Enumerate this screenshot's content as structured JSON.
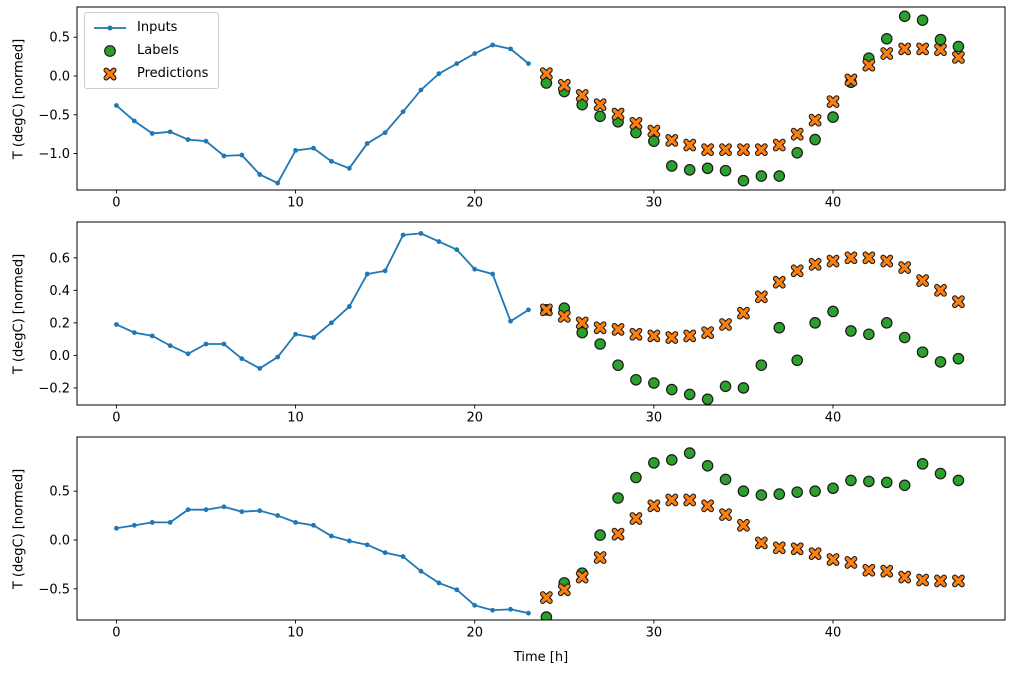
{
  "figure": {
    "type": "matplotlib-figure",
    "background": "#ffffff"
  },
  "legend": {
    "location": "upper-left-of-first-subplot",
    "entries": [
      "Inputs",
      "Labels",
      "Predictions"
    ]
  },
  "colors": {
    "inputs": "#1f77b4",
    "labels": "#2ca02c",
    "predictions": "#ff7f0e",
    "marker_edge": "#1a1a1a",
    "axes": "#000000",
    "legend_border": "#cccccc"
  },
  "chart_data": [
    {
      "type": "line+scatter",
      "title": "",
      "xlabel": "",
      "ylabel": "T (degC) [normed]",
      "xlim": [
        -2.2,
        49.6
      ],
      "ylim": [
        -1.47,
        0.89
      ],
      "x_ticks": [
        0,
        10,
        20,
        30,
        40
      ],
      "x_tick_labels": [
        "0",
        "10",
        "20",
        "30",
        "40"
      ],
      "y_ticks": [
        0.5,
        0.0,
        -0.5,
        -1.0
      ],
      "y_tick_labels": [
        "0.5",
        "0.0",
        "−0.5",
        "−1.0"
      ],
      "grid": false,
      "legend_visible": true,
      "series": [
        {
          "name": "Inputs",
          "type": "line",
          "marker": "dot",
          "color": "#1f77b4",
          "x": [
            0,
            1,
            2,
            3,
            4,
            5,
            6,
            7,
            8,
            9,
            10,
            11,
            12,
            13,
            14,
            15,
            16,
            17,
            18,
            19,
            20,
            21,
            22,
            23
          ],
          "y": [
            -0.38,
            -0.58,
            -0.74,
            -0.72,
            -0.82,
            -0.84,
            -1.03,
            -1.02,
            -1.27,
            -1.38,
            -0.96,
            -0.93,
            -1.1,
            -1.19,
            -0.87,
            -0.73,
            -0.46,
            -0.18,
            0.03,
            0.16,
            0.29,
            0.4,
            0.35,
            0.16
          ]
        },
        {
          "name": "Labels",
          "type": "scatter",
          "marker": "circle",
          "color": "#2ca02c",
          "edge_color": "#1a1a1a",
          "x": [
            24,
            25,
            26,
            27,
            28,
            29,
            30,
            31,
            32,
            33,
            34,
            35,
            36,
            37,
            38,
            39,
            40,
            41,
            42,
            43,
            44,
            45,
            46,
            47
          ],
          "y": [
            -0.09,
            -0.2,
            -0.37,
            -0.52,
            -0.59,
            -0.73,
            -0.84,
            -1.16,
            -1.21,
            -1.19,
            -1.22,
            -1.35,
            -1.29,
            -1.29,
            -0.99,
            -0.82,
            -0.53,
            -0.08,
            0.23,
            0.48,
            0.77,
            0.72,
            0.47,
            0.38
          ]
        },
        {
          "name": "Predictions",
          "type": "scatter",
          "marker": "X",
          "color": "#ff7f0e",
          "edge_color": "#1a1a1a",
          "x": [
            24,
            25,
            26,
            27,
            28,
            29,
            30,
            31,
            32,
            33,
            34,
            35,
            36,
            37,
            38,
            39,
            40,
            41,
            42,
            43,
            44,
            45,
            46,
            47
          ],
          "y": [
            0.03,
            -0.12,
            -0.25,
            -0.37,
            -0.49,
            -0.61,
            -0.71,
            -0.83,
            -0.89,
            -0.95,
            -0.95,
            -0.95,
            -0.95,
            -0.89,
            -0.75,
            -0.57,
            -0.33,
            -0.05,
            0.14,
            0.29,
            0.35,
            0.35,
            0.34,
            0.24
          ]
        }
      ]
    },
    {
      "type": "line+scatter",
      "title": "",
      "xlabel": "",
      "ylabel": "T (degC) [normed]",
      "xlim": [
        -2.2,
        49.6
      ],
      "ylim": [
        -0.305,
        0.82
      ],
      "x_ticks": [
        0,
        10,
        20,
        30,
        40
      ],
      "x_tick_labels": [
        "0",
        "10",
        "20",
        "30",
        "40"
      ],
      "y_ticks": [
        0.6,
        0.4,
        0.2,
        0.0,
        -0.2
      ],
      "y_tick_labels": [
        "0.6",
        "0.4",
        "0.2",
        "0.0",
        "−0.2"
      ],
      "grid": false,
      "legend_visible": false,
      "series": [
        {
          "name": "Inputs",
          "type": "line",
          "marker": "dot",
          "color": "#1f77b4",
          "x": [
            0,
            1,
            2,
            3,
            4,
            5,
            6,
            7,
            8,
            9,
            10,
            11,
            12,
            13,
            14,
            15,
            16,
            17,
            18,
            19,
            20,
            21,
            22,
            23
          ],
          "y": [
            0.19,
            0.14,
            0.12,
            0.06,
            0.01,
            0.07,
            0.07,
            -0.02,
            -0.08,
            -0.01,
            0.13,
            0.11,
            0.2,
            0.3,
            0.5,
            0.52,
            0.74,
            0.75,
            0.7,
            0.65,
            0.53,
            0.5,
            0.21,
            0.28
          ]
        },
        {
          "name": "Labels",
          "type": "scatter",
          "marker": "circle",
          "color": "#2ca02c",
          "edge_color": "#1a1a1a",
          "x": [
            24,
            25,
            26,
            27,
            28,
            29,
            30,
            31,
            32,
            33,
            34,
            35,
            36,
            37,
            38,
            39,
            40,
            41,
            42,
            43,
            44,
            45,
            46,
            47
          ],
          "y": [
            0.28,
            0.29,
            0.14,
            0.07,
            -0.06,
            -0.15,
            -0.17,
            -0.21,
            -0.24,
            -0.27,
            -0.19,
            -0.2,
            -0.06,
            0.17,
            -0.03,
            0.2,
            0.27,
            0.15,
            0.13,
            0.2,
            0.11,
            0.02,
            -0.04,
            -0.02
          ]
        },
        {
          "name": "Predictions",
          "type": "scatter",
          "marker": "X",
          "color": "#ff7f0e",
          "edge_color": "#1a1a1a",
          "x": [
            24,
            25,
            26,
            27,
            28,
            29,
            30,
            31,
            32,
            33,
            34,
            35,
            36,
            37,
            38,
            39,
            40,
            41,
            42,
            43,
            44,
            45,
            46,
            47
          ],
          "y": [
            0.28,
            0.24,
            0.2,
            0.17,
            0.16,
            0.13,
            0.12,
            0.11,
            0.12,
            0.14,
            0.19,
            0.26,
            0.36,
            0.45,
            0.52,
            0.56,
            0.58,
            0.6,
            0.6,
            0.58,
            0.54,
            0.46,
            0.4,
            0.33
          ]
        }
      ]
    },
    {
      "type": "line+scatter",
      "title": "",
      "xlabel": "Time [h]",
      "ylabel": "T (degC) [normed]",
      "xlim": [
        -2.2,
        49.6
      ],
      "ylim": [
        -0.82,
        1.055
      ],
      "x_ticks": [
        0,
        10,
        20,
        30,
        40
      ],
      "x_tick_labels": [
        "0",
        "10",
        "20",
        "30",
        "40"
      ],
      "y_ticks": [
        0.5,
        0.0,
        -0.5
      ],
      "y_tick_labels": [
        "0.5",
        "0.0",
        "−0.5"
      ],
      "grid": false,
      "legend_visible": false,
      "series": [
        {
          "name": "Inputs",
          "type": "line",
          "marker": "dot",
          "color": "#1f77b4",
          "x": [
            0,
            1,
            2,
            3,
            4,
            5,
            6,
            7,
            8,
            9,
            10,
            11,
            12,
            13,
            14,
            15,
            16,
            17,
            18,
            19,
            20,
            21,
            22,
            23
          ],
          "y": [
            0.12,
            0.15,
            0.18,
            0.18,
            0.31,
            0.31,
            0.34,
            0.29,
            0.3,
            0.25,
            0.18,
            0.15,
            0.04,
            -0.01,
            -0.05,
            -0.13,
            -0.17,
            -0.32,
            -0.44,
            -0.51,
            -0.67,
            -0.72,
            -0.71,
            -0.75
          ]
        },
        {
          "name": "Labels",
          "type": "scatter",
          "marker": "circle",
          "color": "#2ca02c",
          "edge_color": "#1a1a1a",
          "x": [
            24,
            25,
            26,
            27,
            28,
            29,
            30,
            31,
            32,
            33,
            34,
            35,
            36,
            37,
            38,
            39,
            40,
            41,
            42,
            43,
            44,
            45,
            46,
            47
          ],
          "y": [
            -0.79,
            -0.44,
            -0.34,
            0.05,
            0.43,
            0.64,
            0.79,
            0.82,
            0.89,
            0.76,
            0.62,
            0.5,
            0.46,
            0.47,
            0.49,
            0.5,
            0.53,
            0.61,
            0.6,
            0.59,
            0.56,
            0.78,
            0.68,
            0.61
          ]
        },
        {
          "name": "Predictions",
          "type": "scatter",
          "marker": "X",
          "color": "#ff7f0e",
          "edge_color": "#1a1a1a",
          "x": [
            24,
            25,
            26,
            27,
            28,
            29,
            30,
            31,
            32,
            33,
            34,
            35,
            36,
            37,
            38,
            39,
            40,
            41,
            42,
            43,
            44,
            45,
            46,
            47
          ],
          "y": [
            -0.59,
            -0.51,
            -0.38,
            -0.18,
            0.06,
            0.22,
            0.35,
            0.41,
            0.41,
            0.35,
            0.26,
            0.15,
            -0.03,
            -0.08,
            -0.09,
            -0.14,
            -0.2,
            -0.23,
            -0.31,
            -0.32,
            -0.38,
            -0.41,
            -0.42,
            -0.42
          ]
        }
      ]
    }
  ]
}
